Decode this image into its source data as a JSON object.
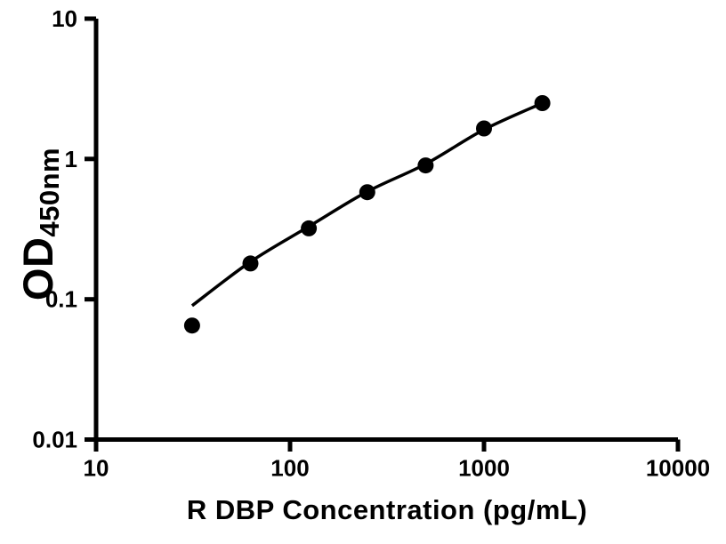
{
  "chart_data": {
    "type": "scatter",
    "title": "",
    "xlabel": "R DBP Concentration (pg/mL)",
    "ylabel": "OD",
    "ylabel_subscript": "450nm",
    "x_scale": "log",
    "y_scale": "log",
    "xlim": [
      10,
      10000
    ],
    "ylim": [
      0.01,
      10
    ],
    "x_ticks": [
      10,
      100,
      1000,
      10000
    ],
    "y_ticks": [
      0.01,
      0.1,
      1,
      10
    ],
    "grid": false,
    "legend_position": "none",
    "colors": {
      "foreground": "#000000",
      "background": "#ffffff"
    },
    "marker": {
      "shape": "circle",
      "radius_px": 9,
      "color": "#000000"
    },
    "series": [
      {
        "name": "standard-points",
        "type": "scatter",
        "color": "#000000",
        "x": [
          31.25,
          62.5,
          125,
          250,
          500,
          1000,
          2000
        ],
        "y": [
          0.065,
          0.18,
          0.32,
          0.58,
          0.9,
          1.65,
          2.5
        ]
      },
      {
        "name": "fit-curve",
        "type": "line",
        "color": "#000000",
        "stroke_px": 3.5,
        "x": [
          31.25,
          62.5,
          125,
          250,
          500,
          1000,
          2000
        ],
        "y": [
          0.09,
          0.185,
          0.33,
          0.585,
          0.92,
          1.62,
          2.5
        ]
      }
    ]
  }
}
